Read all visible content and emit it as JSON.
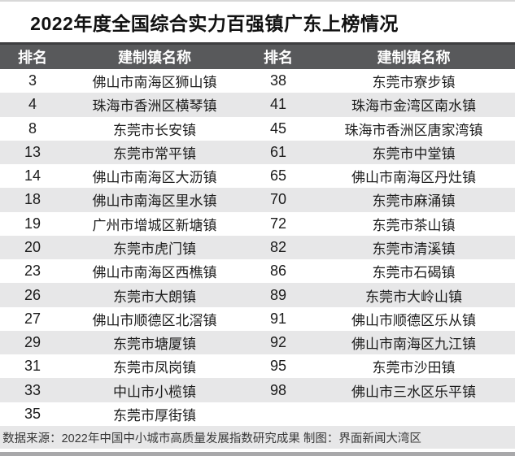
{
  "title": "2022年度全国综合实力百强镇广东上榜情况",
  "table": {
    "columns": [
      "排名",
      "建制镇名称",
      "排名",
      "建制镇名称"
    ],
    "rows": [
      [
        "3",
        "佛山市南海区狮山镇",
        "38",
        "东莞市寮步镇"
      ],
      [
        "4",
        "珠海市香洲区横琴镇",
        "41",
        "珠海市金湾区南水镇"
      ],
      [
        "8",
        "东莞市长安镇",
        "45",
        "珠海市香洲区唐家湾镇"
      ],
      [
        "13",
        "东莞市常平镇",
        "61",
        "东莞市中堂镇"
      ],
      [
        "14",
        "佛山市南海区大沥镇",
        "65",
        "佛山市南海区丹灶镇"
      ],
      [
        "18",
        "佛山市南海区里水镇",
        "70",
        "东莞市麻涌镇"
      ],
      [
        "19",
        "广州市增城区新塘镇",
        "72",
        "东莞市茶山镇"
      ],
      [
        "20",
        "东莞市虎门镇",
        "82",
        "东莞市清溪镇"
      ],
      [
        "23",
        "佛山市南海区西樵镇",
        "86",
        "东莞市石碣镇"
      ],
      [
        "26",
        "东莞市大朗镇",
        "89",
        "东莞市大岭山镇"
      ],
      [
        "27",
        "佛山市顺德区北滘镇",
        "91",
        "佛山市顺德区乐从镇"
      ],
      [
        "29",
        "东莞市塘厦镇",
        "92",
        "佛山市南海区九江镇"
      ],
      [
        "31",
        "东莞市凤岗镇",
        "95",
        "东莞市沙田镇"
      ],
      [
        "33",
        "中山市小榄镇",
        "98",
        "佛山市三水区乐平镇"
      ],
      [
        "35",
        "东莞市厚街镇",
        "",
        ""
      ]
    ]
  },
  "footer": "数据来源：2022年中国中小城市高质量发展指数研究成果 制图：界面新闻大湾区",
  "theme": {
    "header_bg": "#58595b",
    "header_top": "#3e3e40",
    "stripe": "#e7e7e8",
    "footer_bg": "#e7e7e8",
    "text": "#1c1c1c",
    "header_text": "#ffffff",
    "footer_text": "#383838",
    "bottom_strip": "#a8a8aa",
    "top_line": "#d8d8d8"
  }
}
